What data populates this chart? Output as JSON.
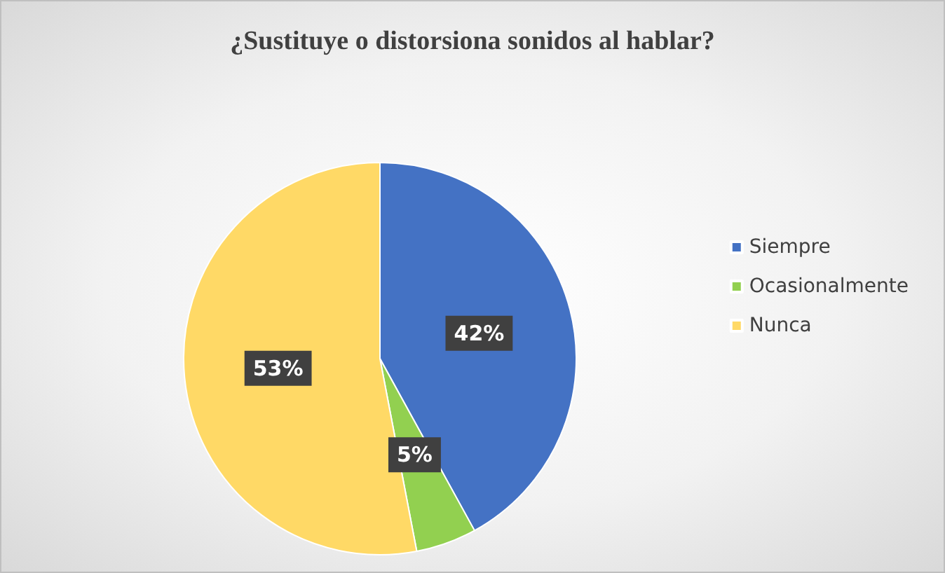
{
  "chart_data": {
    "type": "pie",
    "title": "¿Sustituye o distorsiona sonidos al hablar?",
    "categories": [
      "Siempre",
      "Ocasionalmente",
      "Nunca"
    ],
    "values": [
      42,
      5,
      53
    ],
    "colors": [
      "#4472c4",
      "#92d050",
      "#ffd966"
    ],
    "value_labels": [
      "42%",
      "5%",
      "53%"
    ],
    "legend": "right"
  }
}
